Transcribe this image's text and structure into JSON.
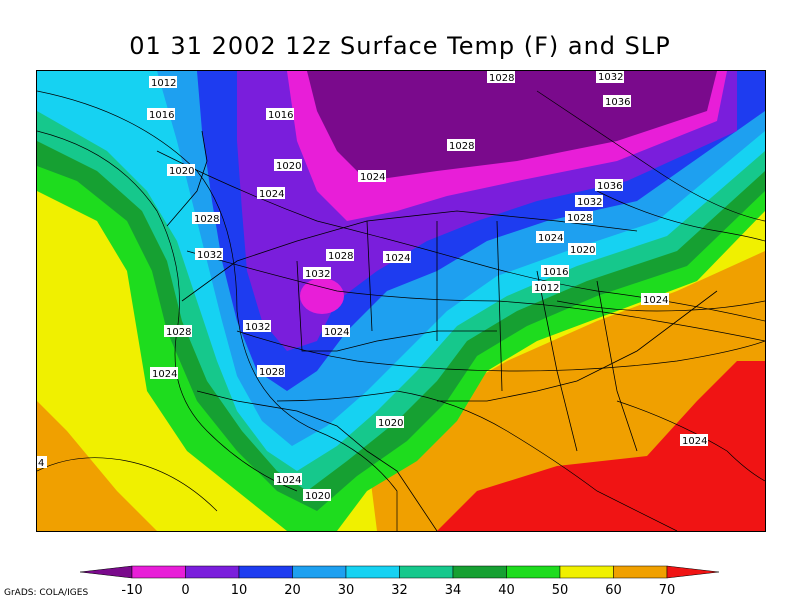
{
  "title": "01 31 2002 12z Surface Temp (F) and SLP",
  "credit": "GrADS: COLA/IGES",
  "colorbar": {
    "ticks": [
      "-10",
      "0",
      "10",
      "20",
      "30",
      "32",
      "34",
      "40",
      "50",
      "60",
      "70"
    ],
    "colors": [
      "#7a0a8c",
      "#e81ed8",
      "#7a1edc",
      "#1e3cf0",
      "#1ea0f0",
      "#16d2f2",
      "#16c88c",
      "#16a032",
      "#1edc1e",
      "#f0f000",
      "#f0a000",
      "#f01414"
    ]
  },
  "isobar_labels": [
    {
      "id": "l1",
      "text": "1012"
    },
    {
      "id": "l2",
      "text": "1016"
    },
    {
      "id": "l3",
      "text": "1016"
    },
    {
      "id": "l4",
      "text": "1028"
    },
    {
      "id": "l5",
      "text": "1032"
    },
    {
      "id": "l6",
      "text": "1036"
    },
    {
      "id": "l7",
      "text": "1020"
    },
    {
      "id": "l8",
      "text": "1020"
    },
    {
      "id": "l9",
      "text": "1028"
    },
    {
      "id": "l10",
      "text": "1024"
    },
    {
      "id": "l11",
      "text": "1024"
    },
    {
      "id": "l12",
      "text": "1036"
    },
    {
      "id": "l13",
      "text": "1028"
    },
    {
      "id": "l14",
      "text": "1032"
    },
    {
      "id": "l15",
      "text": "1028"
    },
    {
      "id": "l16",
      "text": "1024"
    },
    {
      "id": "l17",
      "text": "1032"
    },
    {
      "id": "l18",
      "text": "1028"
    },
    {
      "id": "l19",
      "text": "1024"
    },
    {
      "id": "l20",
      "text": "1020"
    },
    {
      "id": "l21",
      "text": "1032"
    },
    {
      "id": "l22",
      "text": "1016"
    },
    {
      "id": "l23",
      "text": "1012"
    },
    {
      "id": "l24",
      "text": "1028"
    },
    {
      "id": "l25",
      "text": "1032"
    },
    {
      "id": "l26",
      "text": "1024"
    },
    {
      "id": "l27",
      "text": "1024"
    },
    {
      "id": "l28",
      "text": "1024"
    },
    {
      "id": "l29",
      "text": "1028"
    },
    {
      "id": "l30",
      "text": "1020"
    },
    {
      "id": "l31",
      "text": "1024"
    },
    {
      "id": "l32",
      "text": "1024"
    },
    {
      "id": "l33",
      "text": "1020"
    },
    {
      "id": "l34",
      "text": "4"
    }
  ]
}
